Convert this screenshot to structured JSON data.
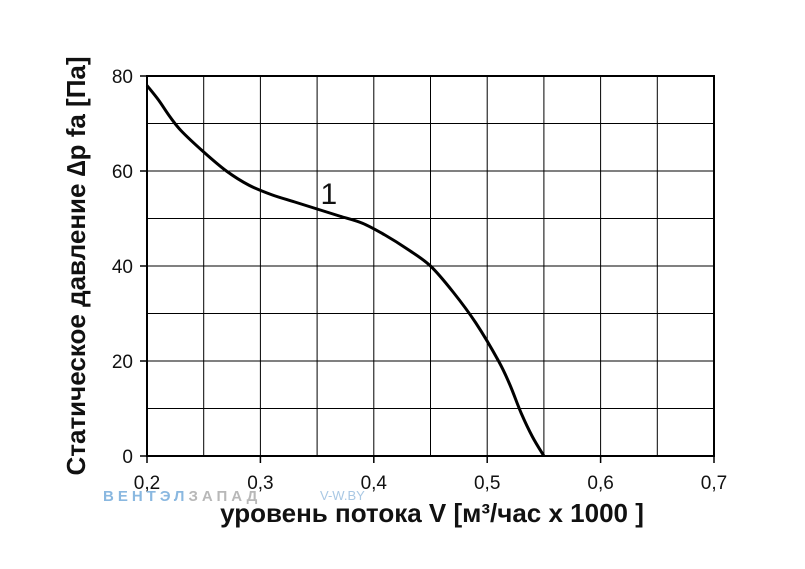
{
  "chart_data": {
    "type": "line",
    "xlabel": "уровень потока  V [м³/час x 1000 ]",
    "ylabel": "Статическое давление  ∆p fa [Па]",
    "xlim": [
      0.2,
      0.7
    ],
    "ylim": [
      0,
      80
    ],
    "x_ticks": [
      "0,2",
      "0,3",
      "0,4",
      "0,5",
      "0,6",
      "0,7"
    ],
    "y_ticks": [
      "0",
      "20",
      "40",
      "60",
      "80"
    ],
    "grid": true,
    "series": [
      {
        "name": "1",
        "x": [
          0.2,
          0.21,
          0.22,
          0.23,
          0.25,
          0.27,
          0.29,
          0.31,
          0.33,
          0.35,
          0.37,
          0.39,
          0.41,
          0.43,
          0.45,
          0.47,
          0.49,
          0.51,
          0.52,
          0.53,
          0.54,
          0.55
        ],
        "y": [
          78,
          75,
          71.5,
          68.5,
          64,
          60,
          57,
          55,
          53.5,
          52,
          50.5,
          49,
          46.5,
          43.5,
          40,
          34.5,
          28,
          20,
          15,
          9,
          4,
          0
        ]
      }
    ],
    "annotations": [
      {
        "text": "1",
        "x": 0.36,
        "y": 51
      }
    ]
  },
  "watermark": {
    "brand_part1": "ВЕНТЭЛ",
    "brand_part2": "ЗАПАД",
    "site": "V-W.BY"
  }
}
